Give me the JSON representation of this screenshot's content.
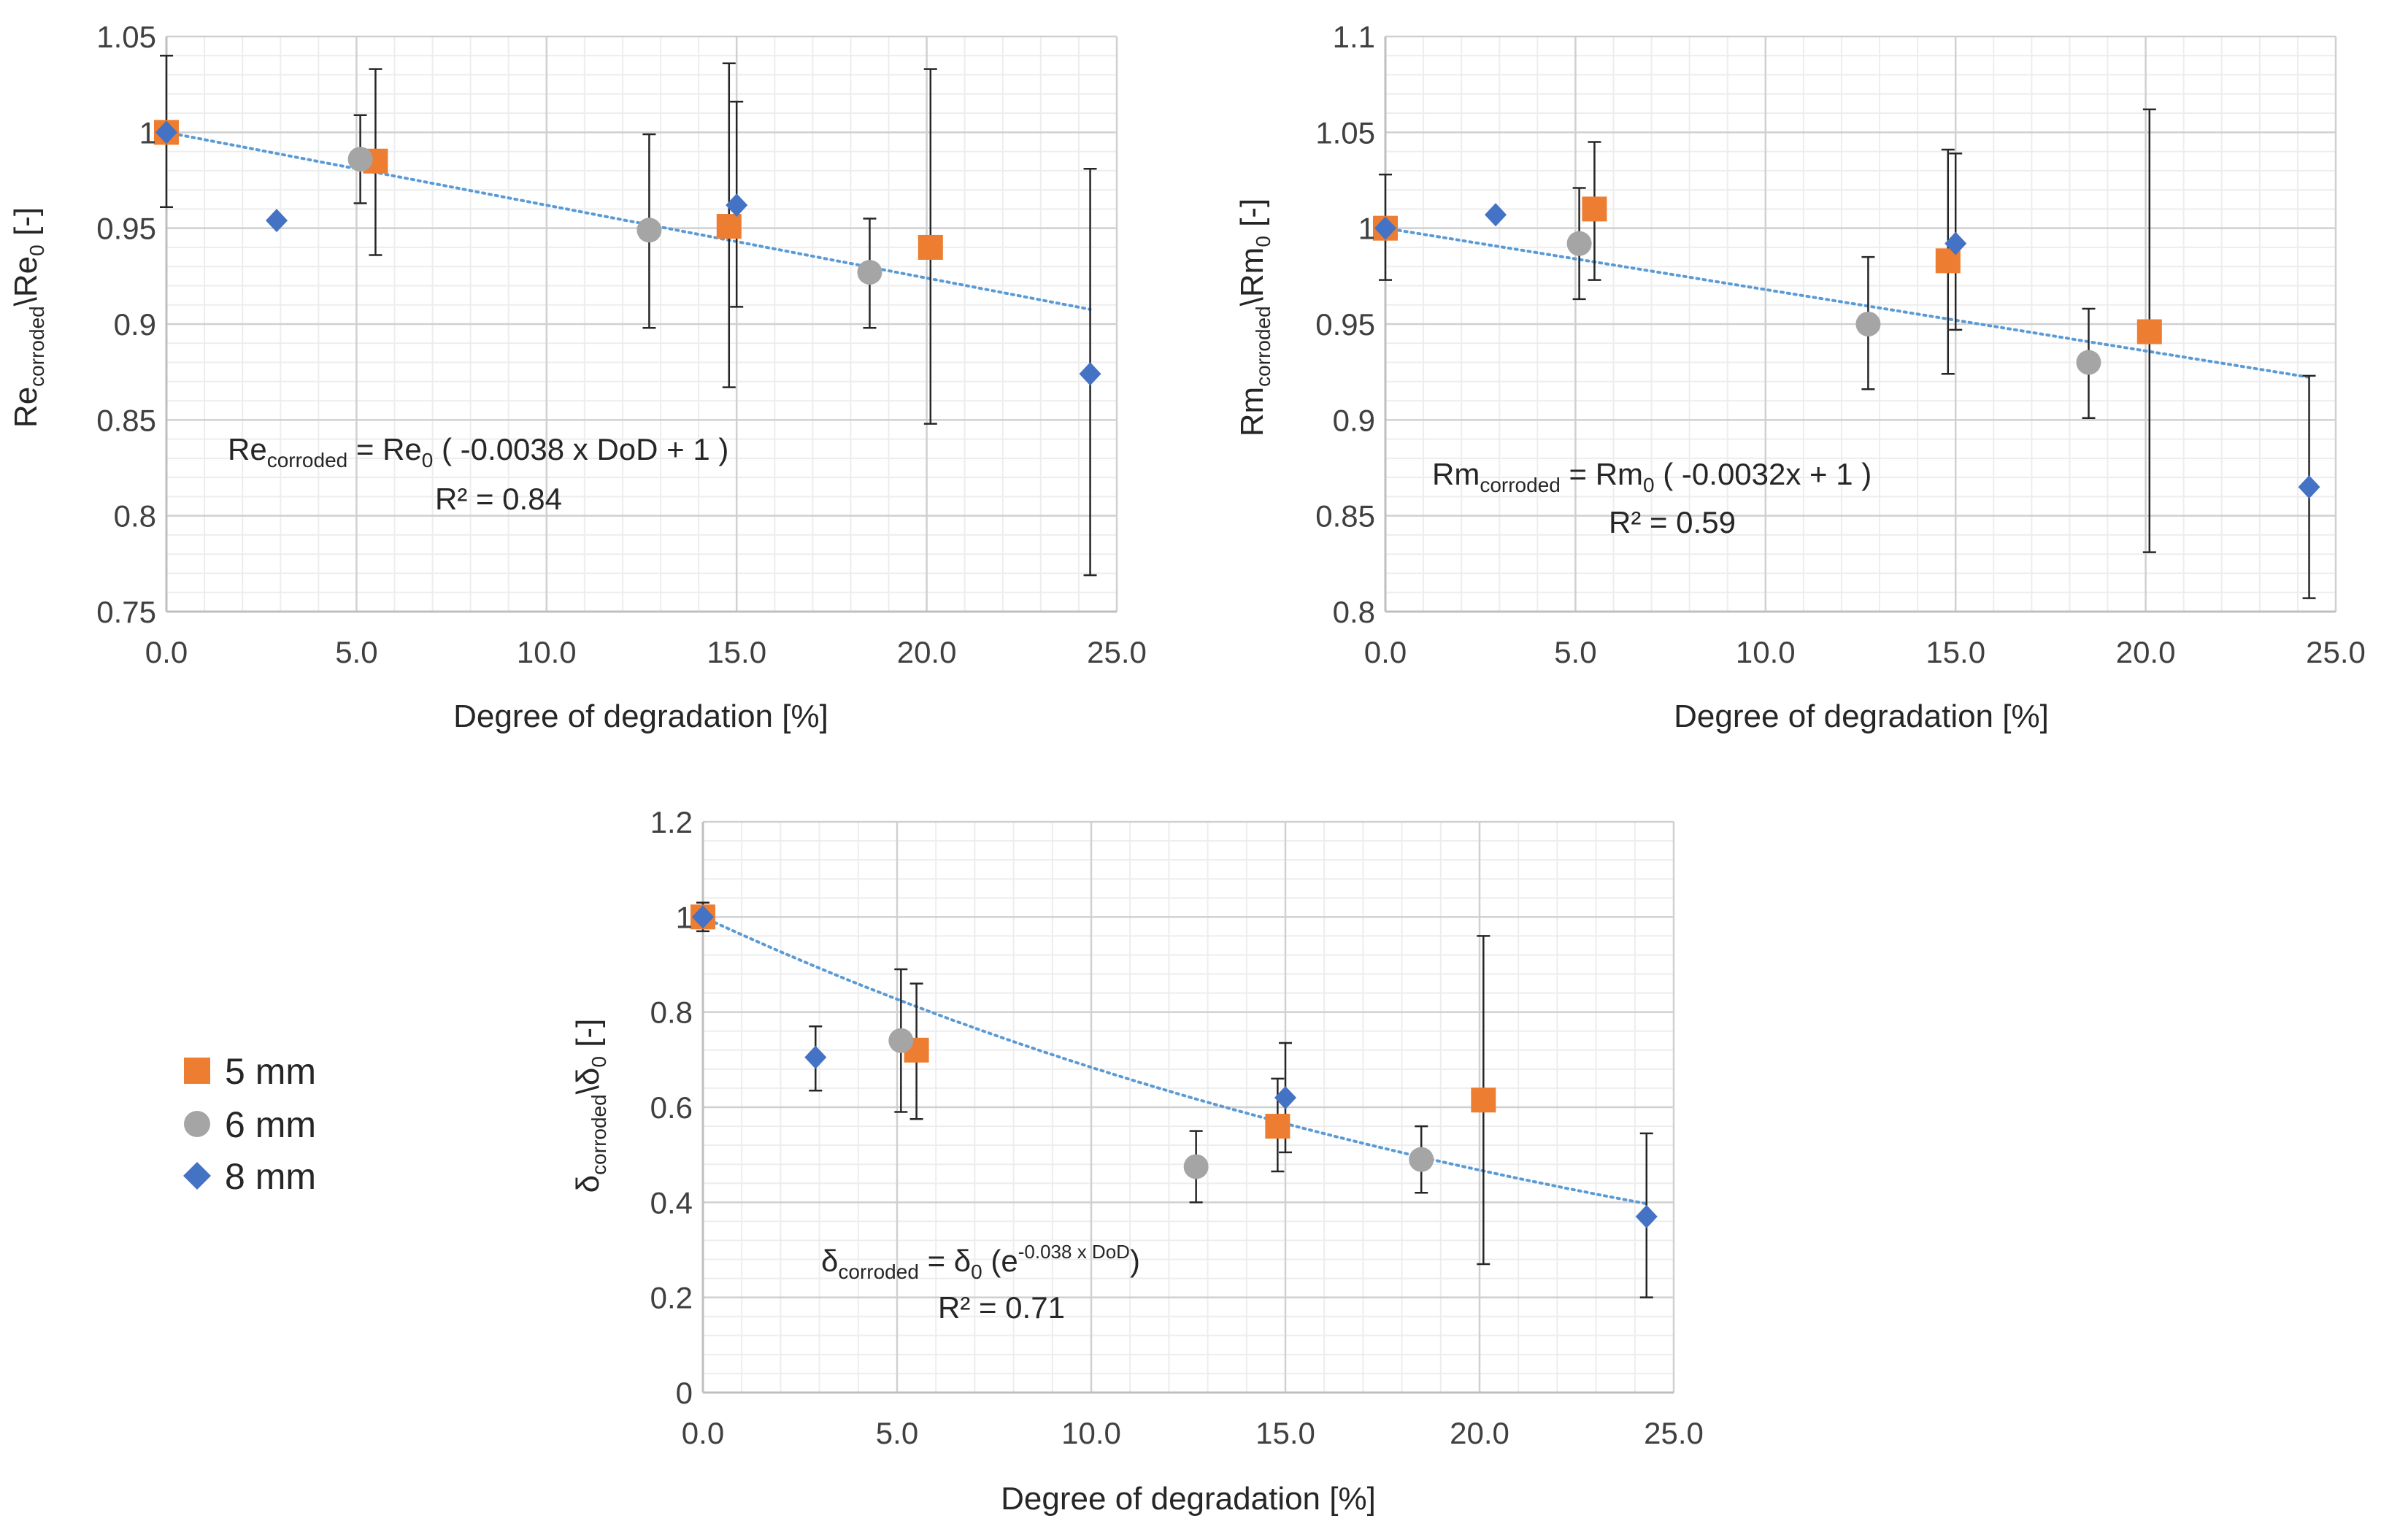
{
  "colors": {
    "s5": "#ED7D31",
    "s6": "#A5A5A5",
    "s8": "#4472C4",
    "trend": "#5B9BD5",
    "err": "#262626"
  },
  "legend": [
    {
      "label": "5 mm",
      "color": "#ED7D31",
      "marker": "square"
    },
    {
      "label": "6 mm",
      "color": "#A5A5A5",
      "marker": "circle"
    },
    {
      "label": "8 mm",
      "color": "#4472C4",
      "marker": "diamond"
    }
  ],
  "chart_data": [
    {
      "type": "scatter",
      "id": "re",
      "xlabel": "Degree of degradation [%]",
      "ylabel": {
        "main": "Re",
        "sub": "corroded",
        "mid": "\\Re",
        "sub2": "0",
        "tail": " [-]"
      },
      "xlim": [
        0,
        25
      ],
      "ylim": [
        0.75,
        1.05
      ],
      "xticks": [
        0,
        5,
        10,
        15,
        20,
        25
      ],
      "xtick_labels": [
        "0.0",
        "5.0",
        "10.0",
        "15.0",
        "20.0",
        "25.0"
      ],
      "yticks": [
        0.75,
        0.8,
        0.85,
        0.9,
        0.95,
        1,
        1.05
      ],
      "ytick_labels": [
        "0.75",
        "0.8",
        "0.85",
        "0.9",
        "0.95",
        "1",
        "1.05"
      ],
      "series": [
        {
          "name": "5 mm",
          "x": [
            0,
            5.5,
            14.8,
            20.1
          ],
          "y": [
            1.0,
            0.985,
            0.951,
            0.94
          ],
          "err_low": [
            null,
            0.936,
            0.867,
            0.848
          ],
          "err_high": [
            null,
            1.033,
            1.036,
            1.033
          ]
        },
        {
          "name": "6 mm",
          "x": [
            5.1,
            12.7,
            18.5
          ],
          "y": [
            0.986,
            0.949,
            0.927
          ],
          "err_low": [
            0.963,
            0.898,
            0.898
          ],
          "err_high": [
            1.009,
            0.999,
            0.955
          ]
        },
        {
          "name": "8 mm",
          "x": [
            0,
            2.9,
            15.0,
            24.3
          ],
          "y": [
            1.0,
            0.954,
            0.962,
            0.874
          ],
          "err_low": [
            0.961,
            null,
            0.909,
            0.769
          ],
          "err_high": [
            1.04,
            null,
            1.016,
            0.981
          ]
        }
      ],
      "trend": {
        "kind": "linear",
        "a": -0.0038,
        "b": 1,
        "x_end": 24.3
      },
      "equation": {
        "p1": "Re",
        "s1": "corroded",
        "p2": " = Re",
        "s2": "0",
        "p3": " ( -0.0038 x DoD + 1 )",
        "r2": "R² = 0.84"
      }
    },
    {
      "type": "scatter",
      "id": "rm",
      "xlabel": "Degree of degradation [%]",
      "ylabel": {
        "main": "Rm",
        "sub": "corroded",
        "mid": "\\Rm",
        "sub2": "0",
        "tail": " [-]"
      },
      "xlim": [
        0,
        25
      ],
      "ylim": [
        0.8,
        1.1
      ],
      "xticks": [
        0,
        5,
        10,
        15,
        20,
        25
      ],
      "xtick_labels": [
        "0.0",
        "5.0",
        "10.0",
        "15.0",
        "20.0",
        "25.0"
      ],
      "yticks": [
        0.8,
        0.85,
        0.9,
        0.95,
        1,
        1.05,
        1.1
      ],
      "ytick_labels": [
        "0.8",
        "0.85",
        "0.9",
        "0.95",
        "1",
        "1.05",
        "1.1"
      ],
      "series": [
        {
          "name": "5 mm",
          "x": [
            0,
            5.5,
            14.8,
            20.1
          ],
          "y": [
            1.0,
            1.01,
            0.983,
            0.946
          ],
          "err_low": [
            null,
            0.973,
            0.924,
            0.831
          ],
          "err_high": [
            null,
            1.045,
            1.041,
            1.062
          ]
        },
        {
          "name": "6 mm",
          "x": [
            5.1,
            12.7,
            18.5
          ],
          "y": [
            0.992,
            0.95,
            0.93
          ],
          "err_low": [
            0.963,
            0.916,
            0.901
          ],
          "err_high": [
            1.021,
            0.985,
            0.958
          ]
        },
        {
          "name": "8 mm",
          "x": [
            0,
            2.9,
            15.0,
            24.3
          ],
          "y": [
            1.0,
            1.007,
            0.992,
            0.865
          ],
          "err_low": [
            0.973,
            null,
            0.947,
            0.807
          ],
          "err_high": [
            1.028,
            null,
            1.039,
            0.923
          ]
        }
      ],
      "trend": {
        "kind": "linear",
        "a": -0.0032,
        "b": 1,
        "x_end": 24.3
      },
      "equation": {
        "p1": "Rm",
        "s1": "corroded",
        "p2": " = Rm",
        "s2": "0",
        "p3": " ( -0.0032x + 1 )",
        "r2": "R² = 0.59"
      }
    },
    {
      "type": "scatter",
      "id": "delta",
      "xlabel": "Degree of degradation [%]",
      "ylabel": {
        "main": "δ",
        "sub": "corroded",
        "mid": "\\δ",
        "sub2": "0",
        "tail": " [-]"
      },
      "xlim": [
        0,
        25
      ],
      "ylim": [
        0,
        1.2
      ],
      "xticks": [
        0,
        5,
        10,
        15,
        20,
        25
      ],
      "xtick_labels": [
        "0.0",
        "5.0",
        "10.0",
        "15.0",
        "20.0",
        "25.0"
      ],
      "yticks": [
        0,
        0.2,
        0.4,
        0.6,
        0.8,
        1,
        1.2
      ],
      "ytick_labels": [
        "0",
        "0.2",
        "0.4",
        "0.6",
        "0.8",
        "1",
        "1.2"
      ],
      "series": [
        {
          "name": "5 mm",
          "x": [
            0,
            5.5,
            14.8,
            20.1
          ],
          "y": [
            1.0,
            0.72,
            0.56,
            0.615
          ],
          "err_low": [
            null,
            0.575,
            0.465,
            0.27
          ],
          "err_high": [
            null,
            0.86,
            0.66,
            0.96
          ]
        },
        {
          "name": "6 mm",
          "x": [
            5.1,
            12.7,
            18.5
          ],
          "y": [
            0.74,
            0.475,
            0.49
          ],
          "err_low": [
            0.59,
            0.4,
            0.42
          ],
          "err_high": [
            0.89,
            0.55,
            0.56
          ]
        },
        {
          "name": "8 mm",
          "x": [
            0,
            2.9,
            15.0,
            24.3
          ],
          "y": [
            1.0,
            0.705,
            0.62,
            0.37
          ],
          "err_low": [
            0.97,
            0.635,
            0.505,
            0.2
          ],
          "err_high": [
            1.03,
            0.77,
            0.735,
            0.545
          ]
        }
      ],
      "trend": {
        "kind": "exponential",
        "a": -0.038,
        "b": 1,
        "x_end": 24.3
      },
      "equation": {
        "p1": "δ",
        "s1": "corroded",
        "p2": " = δ",
        "s2": "0",
        "p3": " (e",
        "sup": "-0.038 x DoD",
        "p4": ")",
        "r2": "R² = 0.71"
      }
    }
  ]
}
